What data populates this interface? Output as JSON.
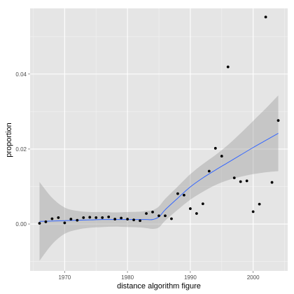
{
  "chart_data": {
    "type": "scatter",
    "xlabel": "distance algorithm figure",
    "ylabel": "proportion",
    "xlim": [
      1964.5,
      2005.5
    ],
    "ylim": [
      -0.0125,
      0.0575
    ],
    "x_ticks": [
      1970,
      1980,
      1990,
      2000
    ],
    "x_tick_labels": [
      "1970",
      "1980",
      "1990",
      "2000"
    ],
    "y_ticks": [
      0.0,
      0.02,
      0.04
    ],
    "y_tick_labels": [
      "0.00",
      "0.02",
      "0.04"
    ],
    "grid": true,
    "legend": "none",
    "colors": {
      "panel": "#e5e5e5",
      "grid_major": "#ffffff",
      "points": "#000000",
      "smooth_line": "#3366ff",
      "confidence_band": "#999999"
    },
    "points": [
      {
        "x": 1966,
        "y": 0.0002
      },
      {
        "x": 1967,
        "y": 0.0006
      },
      {
        "x": 1968,
        "y": 0.0014
      },
      {
        "x": 1969,
        "y": 0.0017
      },
      {
        "x": 1970,
        "y": 0.0003
      },
      {
        "x": 1971,
        "y": 0.0013
      },
      {
        "x": 1972,
        "y": 0.001
      },
      {
        "x": 1973,
        "y": 0.0017
      },
      {
        "x": 1974,
        "y": 0.0018
      },
      {
        "x": 1975,
        "y": 0.0017
      },
      {
        "x": 1976,
        "y": 0.0017
      },
      {
        "x": 1977,
        "y": 0.0019
      },
      {
        "x": 1978,
        "y": 0.0013
      },
      {
        "x": 1979,
        "y": 0.0016
      },
      {
        "x": 1980,
        "y": 0.0013
      },
      {
        "x": 1981,
        "y": 0.0011
      },
      {
        "x": 1982,
        "y": 0.0009
      },
      {
        "x": 1983,
        "y": 0.0028
      },
      {
        "x": 1984,
        "y": 0.0032
      },
      {
        "x": 1985,
        "y": 0.0022
      },
      {
        "x": 1986,
        "y": 0.0022
      },
      {
        "x": 1987,
        "y": 0.0014
      },
      {
        "x": 1988,
        "y": 0.0081
      },
      {
        "x": 1989,
        "y": 0.0077
      },
      {
        "x": 1990,
        "y": 0.0041
      },
      {
        "x": 1991,
        "y": 0.0028
      },
      {
        "x": 1992,
        "y": 0.0054
      },
      {
        "x": 1993,
        "y": 0.0141
      },
      {
        "x": 1994,
        "y": 0.0202
      },
      {
        "x": 1995,
        "y": 0.0181
      },
      {
        "x": 1996,
        "y": 0.0419
      },
      {
        "x": 1997,
        "y": 0.0123
      },
      {
        "x": 1998,
        "y": 0.0113
      },
      {
        "x": 1999,
        "y": 0.0115
      },
      {
        "x": 2000,
        "y": 0.0033
      },
      {
        "x": 2001,
        "y": 0.0053
      },
      {
        "x": 2002,
        "y": 0.0552
      },
      {
        "x": 2003,
        "y": 0.0111
      },
      {
        "x": 2004,
        "y": 0.0276
      }
    ],
    "smooth_fit": {
      "x": [
        1966,
        1968,
        1970,
        1972,
        1974,
        1976,
        1978,
        1980,
        1982,
        1983,
        1984,
        1985,
        1986,
        1988,
        1990,
        1992,
        1994,
        1996,
        1998,
        2000,
        2002,
        2004
      ],
      "y": [
        0.0007,
        0.0008,
        0.0009,
        0.001,
        0.0011,
        0.0012,
        0.0012,
        0.0012,
        0.0012,
        0.0012,
        0.0012,
        0.0019,
        0.0038,
        0.0069,
        0.0099,
        0.0123,
        0.0144,
        0.0164,
        0.0184,
        0.0204,
        0.0223,
        0.0242
      ],
      "lower": [
        -0.0098,
        -0.0054,
        -0.0026,
        -0.0015,
        -0.001,
        -0.0008,
        -0.0007,
        -0.0008,
        -0.0009,
        -0.0011,
        -0.0013,
        -0.0009,
        0.0009,
        0.0038,
        0.0065,
        0.0086,
        0.0104,
        0.0117,
        0.0126,
        0.0133,
        0.0138,
        0.0141
      ],
      "upper": [
        0.0112,
        0.007,
        0.0044,
        0.0035,
        0.0032,
        0.0032,
        0.0031,
        0.0032,
        0.0033,
        0.0035,
        0.0037,
        0.0047,
        0.0067,
        0.01,
        0.0133,
        0.016,
        0.0184,
        0.0211,
        0.0242,
        0.0275,
        0.0308,
        0.0343
      ]
    }
  }
}
